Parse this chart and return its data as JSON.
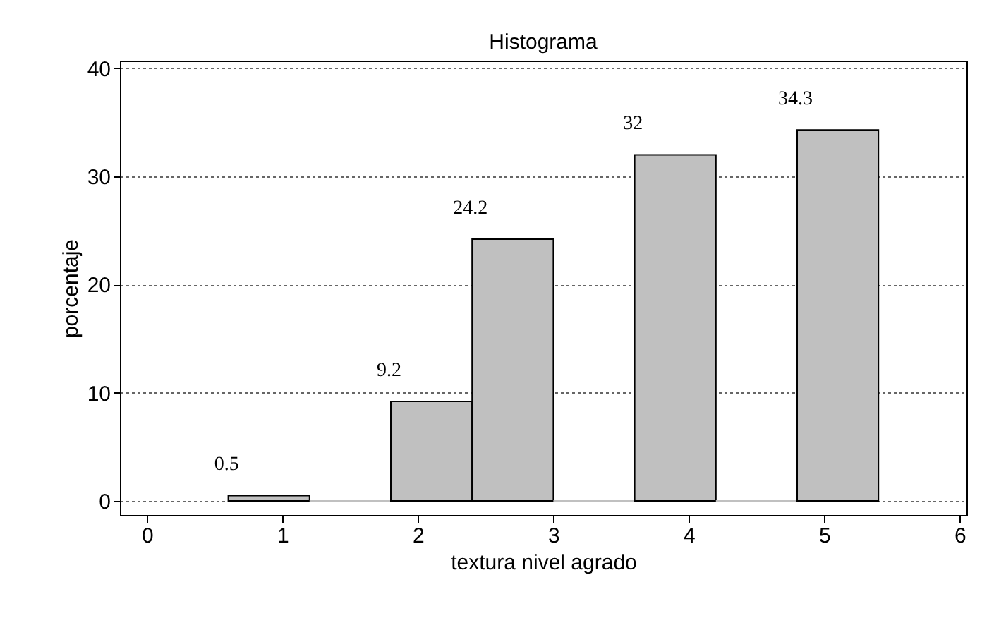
{
  "chart_data": {
    "type": "histogram",
    "title": "Histograma",
    "xlabel": "textura nivel agrado",
    "ylabel": "porcentaje",
    "bins": [
      0.6,
      1.2,
      1.8,
      2.4,
      3.0,
      3.6,
      4.2,
      4.8,
      5.4
    ],
    "values": [
      0.5,
      0,
      9.2,
      24.2,
      0,
      32,
      0,
      34.3
    ],
    "value_labels": [
      "0.5",
      null,
      "9.2",
      "24.2",
      null,
      "32",
      null,
      "34.3"
    ],
    "color": "#c0c0c0",
    "xlim": [
      -0.2,
      6.05
    ],
    "xticks": [
      0,
      1,
      2,
      3,
      4,
      5,
      6
    ],
    "ylim": [
      -1.3,
      40.7
    ],
    "yticks": [
      0,
      10,
      20,
      30,
      40
    ],
    "grid": "y"
  }
}
